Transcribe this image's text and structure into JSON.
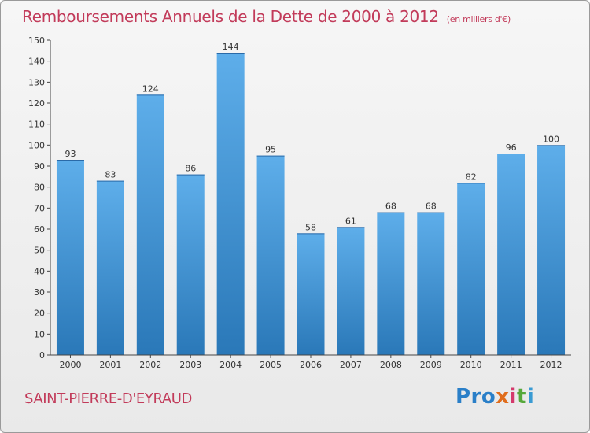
{
  "header": {
    "title": "Remboursements Annuels de la Dette de 2000 à 2012",
    "subtitle": "(en milliers d'€)"
  },
  "footer": {
    "commune": "SAINT-PIERRE-D'EYRAUD",
    "logo_parts": [
      "Pro",
      "x",
      "i",
      "t",
      "i"
    ]
  },
  "chart_data": {
    "type": "bar",
    "title": "Remboursements Annuels de la Dette de 2000 à 2012",
    "subtitle": "(en milliers d'€)",
    "categories": [
      "2000",
      "2001",
      "2002",
      "2003",
      "2004",
      "2005",
      "2006",
      "2007",
      "2008",
      "2009",
      "2010",
      "2011",
      "2012"
    ],
    "values": [
      93,
      83,
      124,
      86,
      144,
      95,
      58,
      61,
      68,
      68,
      82,
      96,
      100
    ],
    "ylim": [
      0,
      150
    ],
    "ytick_step": 10,
    "grid": false,
    "bar_color_top": "#5eaeea",
    "bar_color_bottom": "#2a78b8"
  }
}
